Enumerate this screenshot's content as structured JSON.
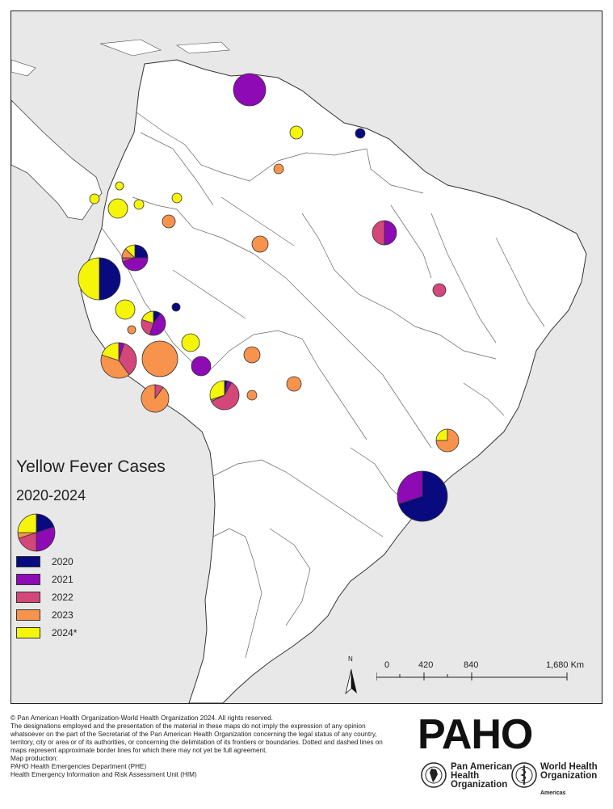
{
  "map": {
    "legend_title": "Yellow Fever Cases",
    "legend_subtitle": "2020-2024",
    "legend_items": [
      {
        "label": "2020",
        "color": "#0a0a80"
      },
      {
        "label": "2021",
        "color": "#8e0ab5"
      },
      {
        "label": "2022",
        "color": "#d4477a"
      },
      {
        "label": "2023",
        "color": "#f7934c"
      },
      {
        "label": "2024*",
        "color": "#f5f50a"
      }
    ],
    "scale": {
      "labels": [
        "0",
        "420",
        "840",
        "1,680 Km"
      ]
    },
    "north_label": "N"
  },
  "footer": {
    "copyright_lines": [
      "© Pan American Health Organization-World Health Organization 2024. All rights reserved.",
      "The designations employed and the presentation of the material in these maps do not imply the expression of any opinion whatsoever on the part of the Secretariat of the Pan American Health Organization concerning the legal status of any country, territory, city or area or of its authorities, or concerning the delimitation of its frontiers or boundaries. Dotted and dashed lines on maps represent approximate border lines for which there may not yet be full agreement.",
      "Map production:",
      "PAHO Health Emergencies Department (PHE)",
      "Health Emergency Information and Risk Assessment Unit (HIM)"
    ],
    "paho_logo": "PAHO",
    "paho_name_lines": [
      "Pan American",
      "Health",
      "Organization"
    ],
    "who_name_lines": [
      "World Health",
      "Organization"
    ],
    "who_region": "Americas"
  }
}
